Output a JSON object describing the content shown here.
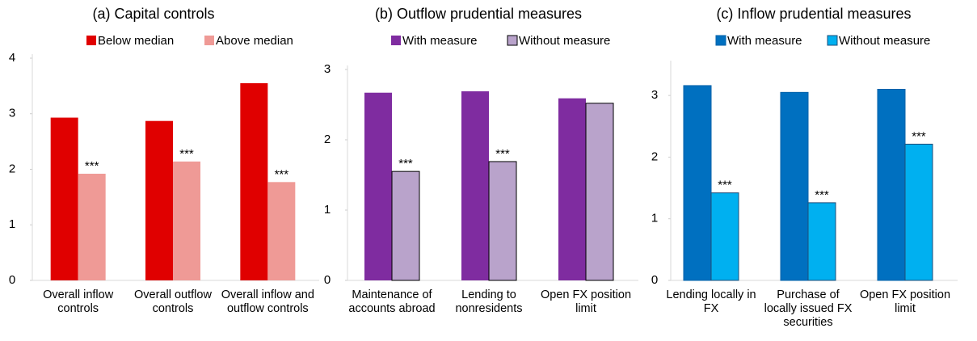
{
  "chart_data": [
    {
      "type": "bar",
      "title": "(a) Capital controls",
      "categories": [
        "Overall inflow controls",
        "Overall outflow controls",
        "Overall inflow and outflow controls"
      ],
      "series": [
        {
          "name": "Below median",
          "color": "#e00000",
          "values": [
            2.93,
            2.87,
            3.55
          ]
        },
        {
          "name": "Above median",
          "color": "#ef9a96",
          "values": [
            1.92,
            2.14,
            1.77
          ]
        }
      ],
      "markers": [
        "***",
        "***",
        "***"
      ],
      "ylim": [
        0,
        4
      ],
      "yticks": [
        0,
        1,
        2,
        3,
        4
      ]
    },
    {
      "type": "bar",
      "title": "(b) Outflow prudential measures",
      "categories": [
        "Maintenance of accounts abroad",
        "Lending to nonresidents",
        "Open FX position limit"
      ],
      "series": [
        {
          "name": "With measure",
          "color": "#7f2ca0",
          "values": [
            2.67,
            2.69,
            2.59
          ]
        },
        {
          "name": "Without measure",
          "color": "#b9a3cb",
          "values": [
            1.55,
            1.69,
            2.52
          ]
        }
      ],
      "markers": [
        "***",
        "***",
        null
      ],
      "ylim": [
        0,
        3
      ],
      "yticks": [
        0,
        1,
        2,
        3
      ]
    },
    {
      "type": "bar",
      "title": "(c) Inflow prudential measures",
      "categories": [
        "Lending locally in FX",
        "Purchase of locally issued FX securities",
        "Open FX position limit"
      ],
      "series": [
        {
          "name": "With measure",
          "color": "#0070c0",
          "values": [
            3.16,
            3.05,
            3.1
          ]
        },
        {
          "name": "Without measure",
          "color": "#00b0f0",
          "values": [
            1.42,
            1.26,
            2.21
          ]
        }
      ],
      "markers": [
        "***",
        "***",
        "***"
      ],
      "ylim": [
        0,
        3.5
      ],
      "yticks": [
        0,
        1,
        2,
        3
      ]
    }
  ]
}
